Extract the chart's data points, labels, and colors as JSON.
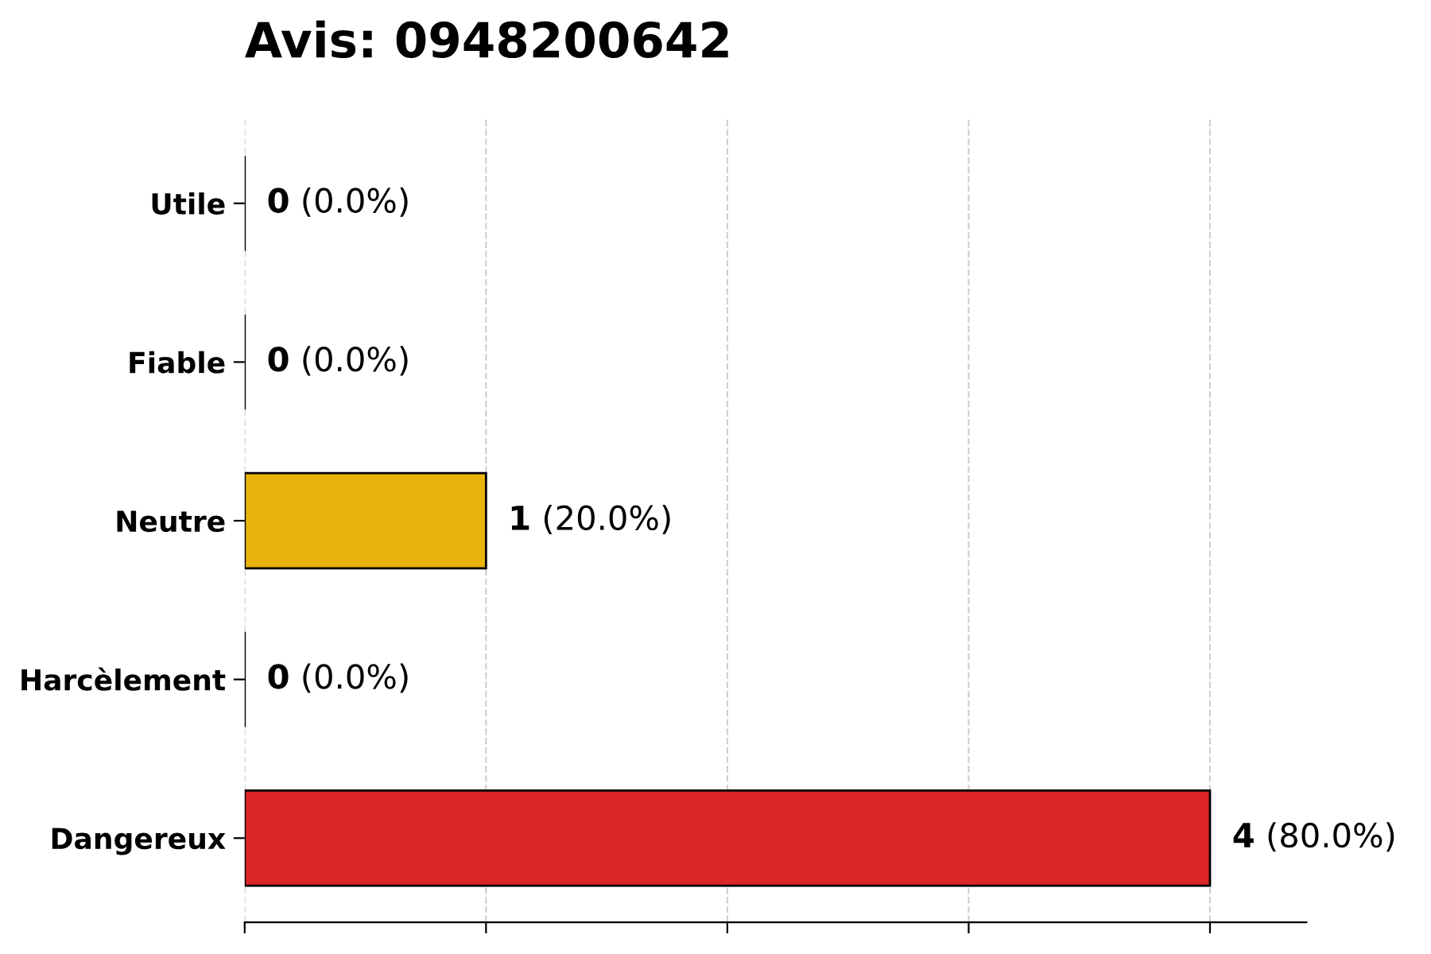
{
  "chart_data": {
    "type": "bar",
    "orientation": "horizontal",
    "title": "Avis: 0948200642",
    "categories": [
      "Utile",
      "Fiable",
      "Neutre",
      "Harcèlement",
      "Dangereux"
    ],
    "values": [
      0,
      0,
      1,
      0,
      4
    ],
    "colors": [
      null,
      null,
      "#e8b40c",
      null,
      "#dc2626"
    ],
    "value_labels": [
      "0 (0.0%)",
      "0 (0.0%)",
      "1 (20.0%)",
      "0 (0.0%)",
      "4 (80.0%)"
    ],
    "xlim": [
      0,
      4.4
    ],
    "xticks": [
      {
        "value": 0,
        "label": null
      },
      {
        "value": 1,
        "label": null
      },
      {
        "value": 2,
        "label": null
      },
      {
        "value": 3,
        "label": null
      },
      {
        "value": 4,
        "label": null
      }
    ],
    "tick_labels": "y",
    "grid": "x"
  }
}
